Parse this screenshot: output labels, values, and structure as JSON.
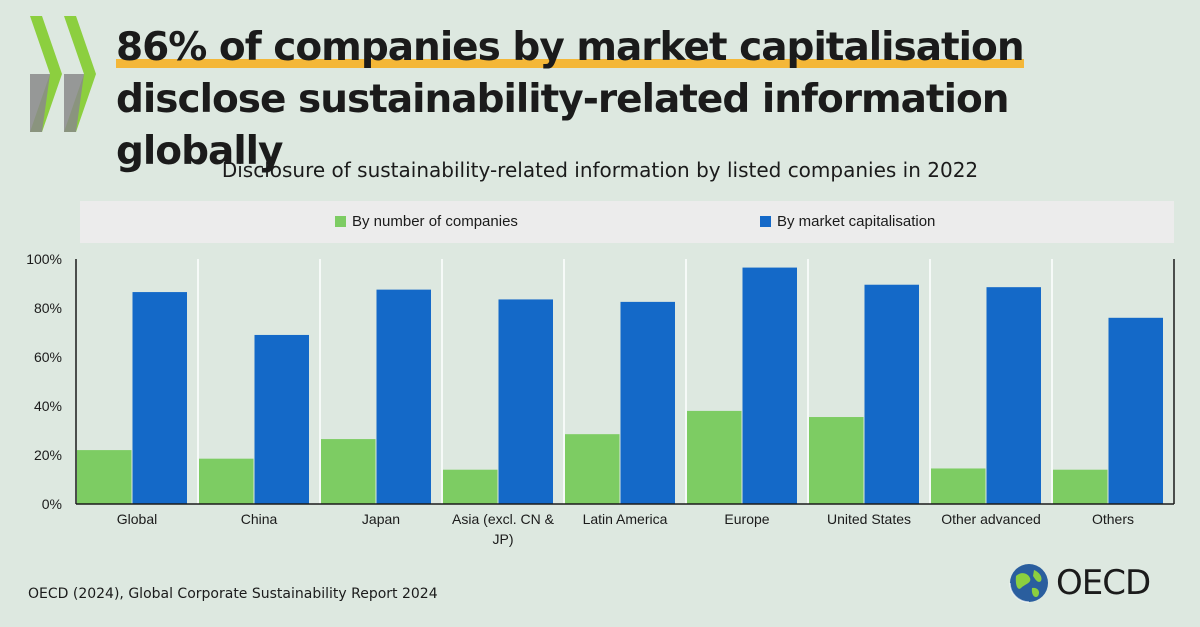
{
  "headline": {
    "highlight": "86% of companies by market capitalisation",
    "rest": " disclose sustainability-related information globally"
  },
  "source": "OECD (2024), Global Corporate Sustainability Report 2024",
  "logo_text": "OECD",
  "colors": {
    "background": "#dde8e0",
    "number_series": "#7dcc63",
    "market_series": "#1469c8",
    "highlight": "#f4b738",
    "chevron": "#8ccf3f"
  },
  "chart_data": {
    "type": "bar",
    "title": "Disclosure of sustainability-related information by listed companies in 2022",
    "categories": [
      "Global",
      "China",
      "Japan",
      "Asia (excl. CN & JP)",
      "Latin America",
      "Europe",
      "United States",
      "Other advanced",
      "Others"
    ],
    "series": [
      {
        "name": "By number of companies",
        "color": "#7dcc63",
        "values": [
          22,
          18.5,
          26.5,
          14,
          28.5,
          38,
          35.5,
          14.5,
          14
        ]
      },
      {
        "name": "By market capitalisation",
        "color": "#1469c8",
        "values": [
          86.5,
          69,
          87.5,
          83.5,
          82.5,
          96.5,
          89.5,
          88.5,
          76
        ]
      }
    ],
    "yticks": [
      "0%",
      "20%",
      "40%",
      "60%",
      "80%",
      "100%"
    ],
    "ylim": [
      0,
      100
    ],
    "grid": "vertical separators between categories",
    "legend_position": "top"
  }
}
